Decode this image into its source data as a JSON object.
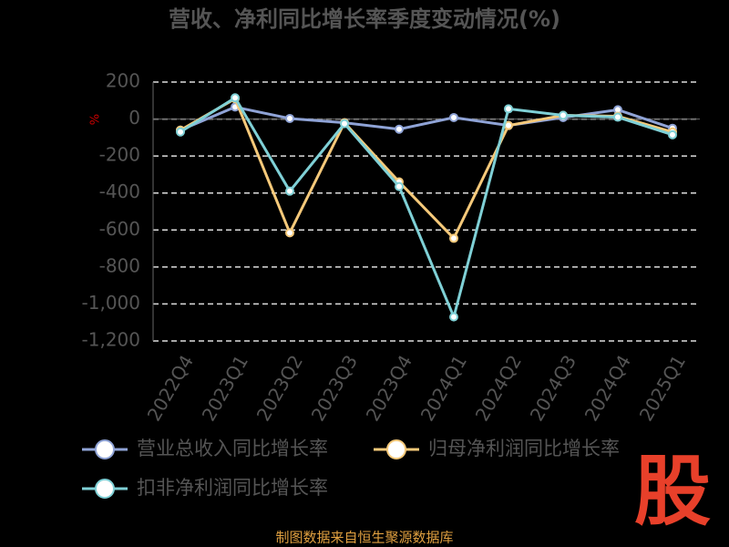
{
  "chart_data": {
    "type": "line",
    "title": "营收、净利同比增长率季度变动情况(%)",
    "y_unit": "%",
    "categories": [
      "2022Q4",
      "2023Q1",
      "2023Q2",
      "2023Q3",
      "2023Q4",
      "2024Q1",
      "2024Q2",
      "2024Q3",
      "2024Q4",
      "2025Q1"
    ],
    "series": [
      {
        "name": "营业总收入同比增长率",
        "color": "#8fa3d6",
        "values": [
          -60,
          65,
          3,
          -20,
          -55,
          8,
          -35,
          8,
          50,
          -50
        ]
      },
      {
        "name": "归母净利润同比增长率",
        "color": "#f5c97a",
        "values": [
          -60,
          110,
          -615,
          -20,
          -340,
          -645,
          -35,
          20,
          15,
          -70
        ]
      },
      {
        "name": "扣非净利润同比增长率",
        "color": "#7fd0d6",
        "values": [
          -70,
          115,
          -390,
          -25,
          -365,
          -1070,
          55,
          20,
          10,
          -85
        ]
      }
    ],
    "ylim": [
      -1200,
      200
    ],
    "yticks": [
      200,
      0,
      -200,
      -400,
      -600,
      -800,
      {
        "value": -1000,
        "label": "-1,000"
      },
      {
        "value": -1200,
        "label": "-1,200"
      }
    ],
    "grid": true,
    "source": "制图数据来自恒生聚源数据库",
    "logo": "股"
  }
}
